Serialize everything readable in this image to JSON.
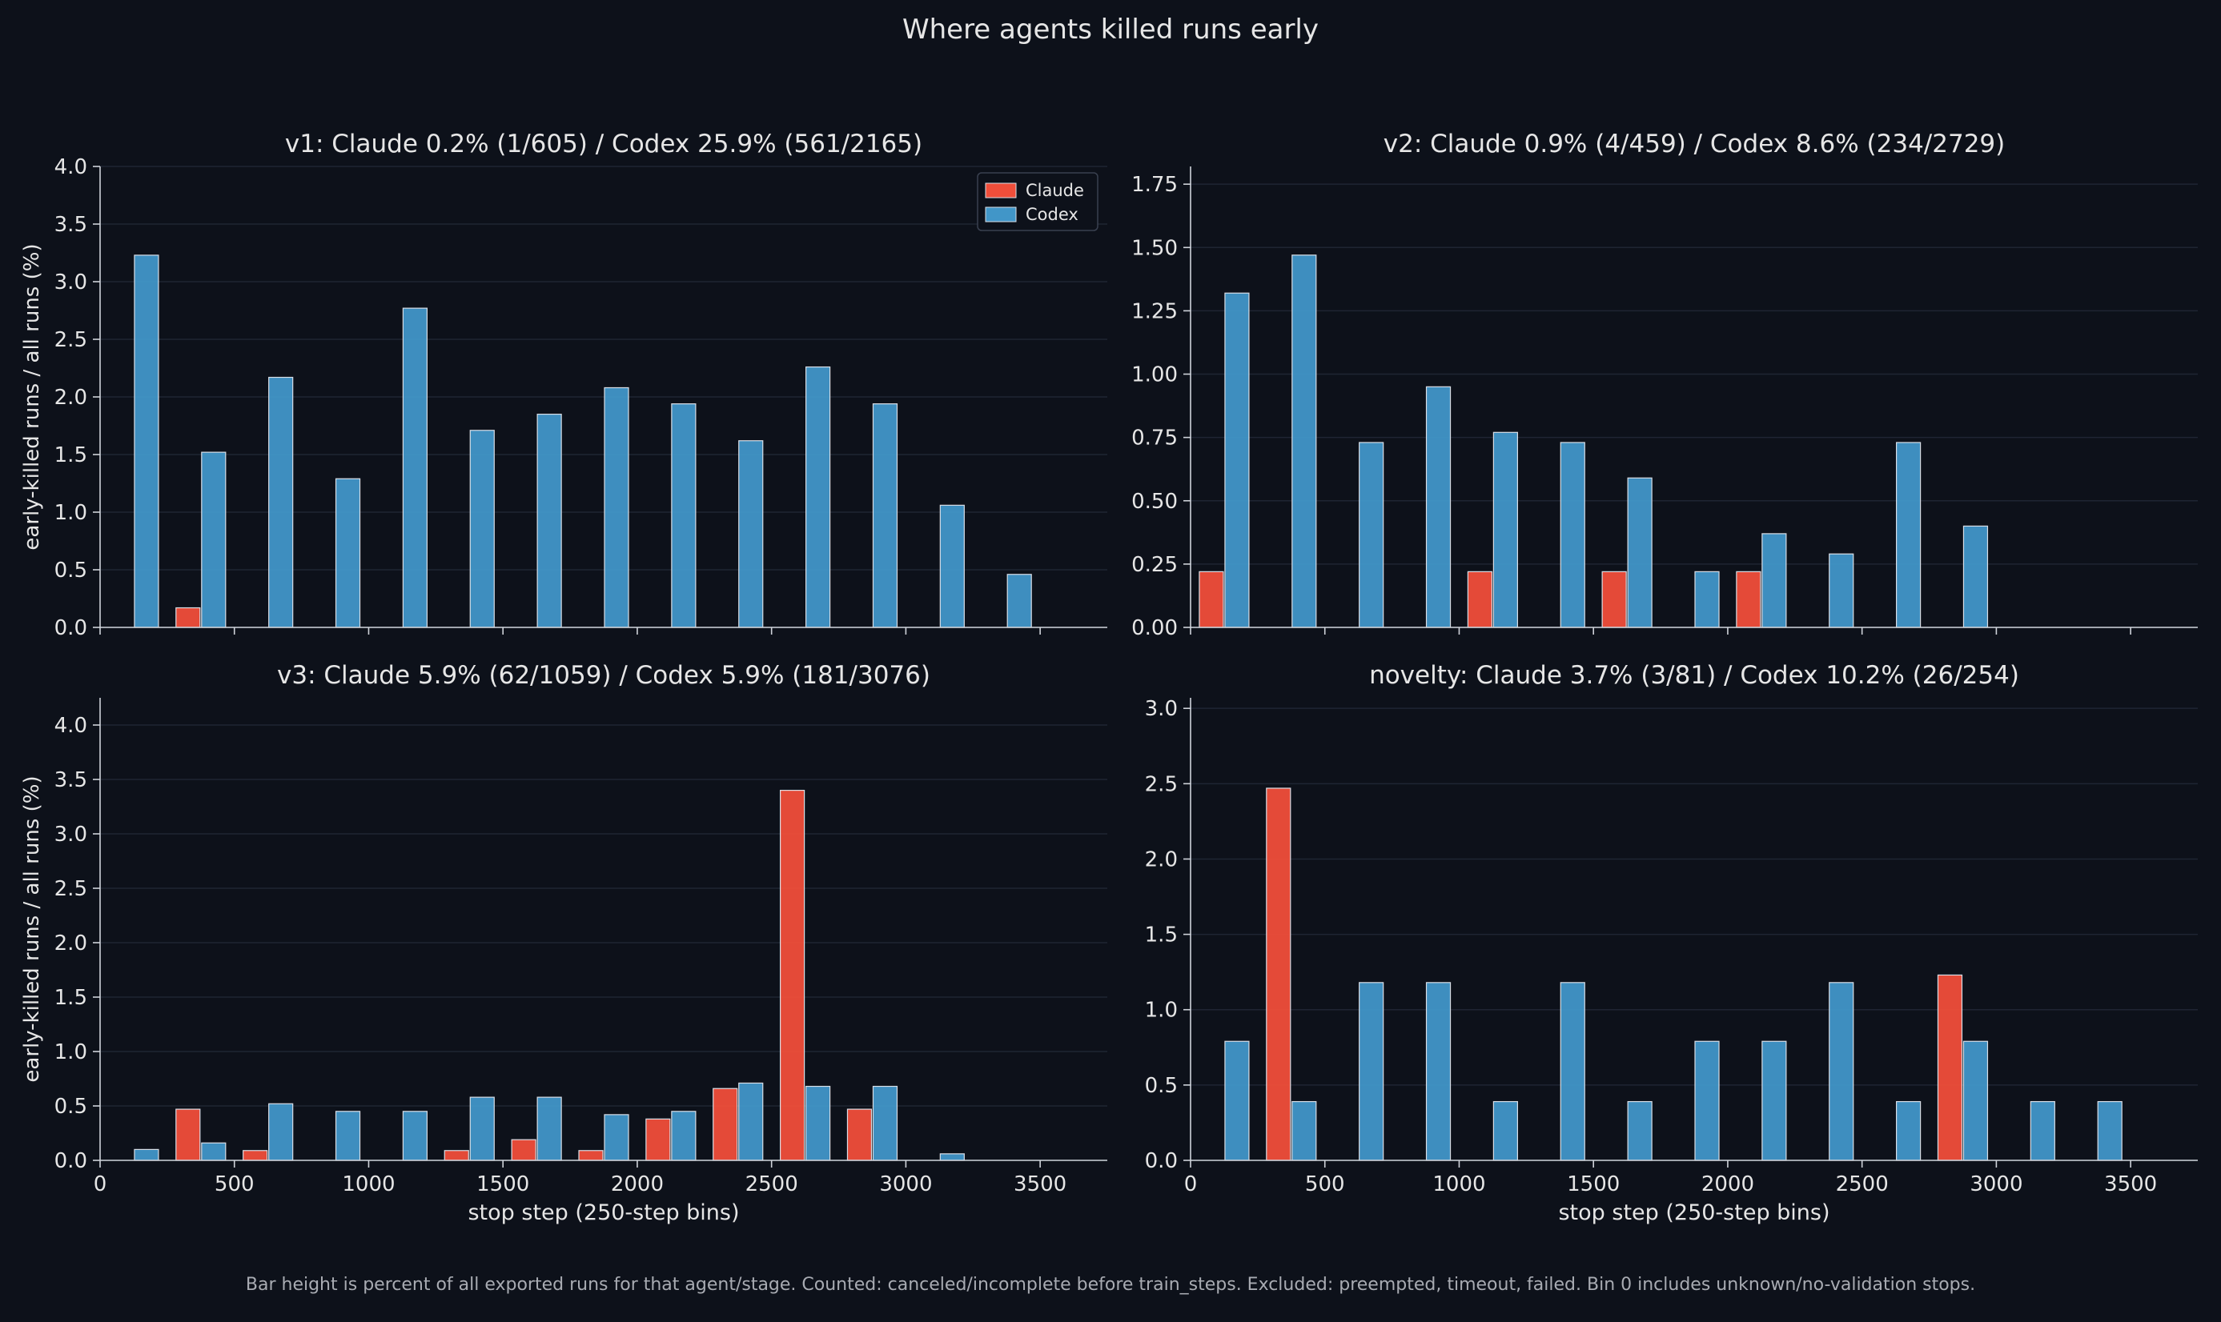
{
  "figure": {
    "title": "Where agents killed runs early",
    "footnote": "Bar height is percent of all exported runs for that agent/stage. Counted: canceled/incomplete before train_steps. Excluded: preempted, timeout, failed. Bin 0 includes unknown/no-validation stops.",
    "colors": {
      "claude": "#f04e3a",
      "codex": "#4196c8",
      "background": "#0d111a",
      "text": "#e6e6e6"
    }
  },
  "chart_data": [
    {
      "type": "bar",
      "title": "v1: Claude 0.2% (1/605) / Codex 25.9% (561/2165)",
      "xlabel": "",
      "ylabel": "early-killed runs / all runs (%)",
      "xlim": [
        0,
        3750
      ],
      "ylim": [
        0,
        4.0
      ],
      "xticks": [
        0,
        500,
        1000,
        1500,
        2000,
        2500,
        3000,
        3500
      ],
      "yticks": [
        0.0,
        0.5,
        1.0,
        1.5,
        2.0,
        2.5,
        3.0,
        3.5,
        4.0
      ],
      "ytick_labels": [
        "0.0",
        "0.5",
        "1.0",
        "1.5",
        "2.0",
        "2.5",
        "3.0",
        "3.5",
        "4.0"
      ],
      "show_xtick_labels": false,
      "grid": "horizontal",
      "legend": {
        "placement": "top-right",
        "entries": [
          "Claude",
          "Codex"
        ]
      },
      "bins": [
        0,
        250,
        500,
        750,
        1000,
        1250,
        1500,
        1750,
        2000,
        2250,
        2500,
        2750,
        3000,
        3250
      ],
      "series": [
        {
          "name": "Claude",
          "color": "#f04e3a",
          "values": [
            0,
            0.17,
            0,
            0,
            0,
            0,
            0,
            0,
            0,
            0,
            0,
            0,
            0,
            0
          ]
        },
        {
          "name": "Codex",
          "color": "#4196c8",
          "values": [
            3.23,
            1.52,
            2.17,
            1.29,
            2.77,
            1.71,
            1.85,
            2.08,
            1.94,
            1.62,
            2.26,
            1.94,
            1.06,
            0.46
          ]
        }
      ]
    },
    {
      "type": "bar",
      "title": "v2: Claude 0.9% (4/459) / Codex 8.6% (234/2729)",
      "xlabel": "",
      "ylabel": "",
      "xlim": [
        0,
        3750
      ],
      "ylim": [
        0,
        1.82
      ],
      "xticks": [
        0,
        500,
        1000,
        1500,
        2000,
        2500,
        3000,
        3500
      ],
      "yticks": [
        0.0,
        0.25,
        0.5,
        0.75,
        1.0,
        1.25,
        1.5,
        1.75
      ],
      "ytick_labels": [
        "0.00",
        "0.25",
        "0.50",
        "0.75",
        "1.00",
        "1.25",
        "1.50",
        "1.75"
      ],
      "show_xtick_labels": false,
      "grid": "horizontal",
      "bins": [
        0,
        250,
        500,
        750,
        1000,
        1250,
        1500,
        1750,
        2000,
        2250,
        2500,
        2750,
        3000
      ],
      "series": [
        {
          "name": "Claude",
          "color": "#f04e3a",
          "values": [
            0.22,
            0,
            0,
            0,
            0.22,
            0,
            0.22,
            0,
            0.22,
            0,
            0,
            0,
            0
          ]
        },
        {
          "name": "Codex",
          "color": "#4196c8",
          "values": [
            1.32,
            1.47,
            0.73,
            0.95,
            0.77,
            0.73,
            0.59,
            0.22,
            0.37,
            0.29,
            0.73,
            0.4,
            0
          ]
        }
      ]
    },
    {
      "type": "bar",
      "title": "v3: Claude 5.9% (62/1059) / Codex 5.9% (181/3076)",
      "xlabel": "stop step (250-step bins)",
      "ylabel": "early-killed runs / all runs (%)",
      "xlim": [
        0,
        3750
      ],
      "ylim": [
        0,
        4.25
      ],
      "xticks": [
        0,
        500,
        1000,
        1500,
        2000,
        2500,
        3000,
        3500
      ],
      "xtick_labels": [
        "0",
        "500",
        "1000",
        "1500",
        "2000",
        "2500",
        "3000",
        "3500"
      ],
      "yticks": [
        0.0,
        0.5,
        1.0,
        1.5,
        2.0,
        2.5,
        3.0,
        3.5,
        4.0
      ],
      "ytick_labels": [
        "0.0",
        "0.5",
        "1.0",
        "1.5",
        "2.0",
        "2.5",
        "3.0",
        "3.5",
        "4.0"
      ],
      "show_xtick_labels": true,
      "grid": "horizontal",
      "bins": [
        0,
        250,
        500,
        750,
        1000,
        1250,
        1500,
        1750,
        2000,
        2250,
        2500,
        2750,
        3000
      ],
      "series": [
        {
          "name": "Claude",
          "color": "#f04e3a",
          "values": [
            0,
            0.47,
            0.09,
            0,
            0,
            0.09,
            0.19,
            0.09,
            0.38,
            0.66,
            3.4,
            0.47,
            0
          ]
        },
        {
          "name": "Codex",
          "color": "#4196c8",
          "values": [
            0.1,
            0.16,
            0.52,
            0.45,
            0.45,
            0.58,
            0.58,
            0.42,
            0.45,
            0.71,
            0.68,
            0.68,
            0.06
          ]
        }
      ]
    },
    {
      "type": "bar",
      "title": "novelty: Claude 3.7% (3/81) / Codex 10.2% (26/254)",
      "xlabel": "stop step (250-step bins)",
      "ylabel": "",
      "xlim": [
        0,
        3750
      ],
      "ylim": [
        0,
        3.07
      ],
      "xticks": [
        0,
        500,
        1000,
        1500,
        2000,
        2500,
        3000,
        3500
      ],
      "xtick_labels": [
        "0",
        "500",
        "1000",
        "1500",
        "2000",
        "2500",
        "3000",
        "3500"
      ],
      "yticks": [
        0.0,
        0.5,
        1.0,
        1.5,
        2.0,
        2.5,
        3.0
      ],
      "ytick_labels": [
        "0.0",
        "0.5",
        "1.0",
        "1.5",
        "2.0",
        "2.5",
        "3.0"
      ],
      "show_xtick_labels": true,
      "grid": "horizontal",
      "bins": [
        0,
        250,
        500,
        750,
        1000,
        1250,
        1500,
        1750,
        2000,
        2250,
        2500,
        2750,
        3000,
        3250
      ],
      "series": [
        {
          "name": "Claude",
          "color": "#f04e3a",
          "values": [
            0,
            2.47,
            0,
            0,
            0,
            0,
            0,
            0,
            0,
            0,
            0,
            1.23,
            0,
            0
          ]
        },
        {
          "name": "Codex",
          "color": "#4196c8",
          "values": [
            0.79,
            0.39,
            1.18,
            1.18,
            0.39,
            1.18,
            0.39,
            0.79,
            0.79,
            1.18,
            0.39,
            0.79,
            0.39,
            0.39
          ]
        }
      ]
    }
  ]
}
